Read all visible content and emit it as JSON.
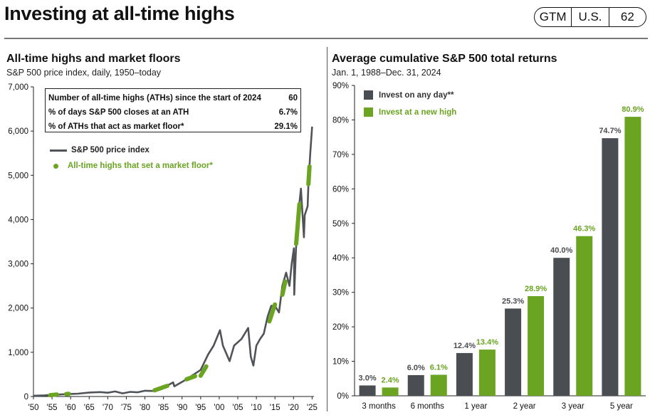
{
  "header": {
    "title": "Investing at all-time highs",
    "badge": [
      "GTM",
      "U.S.",
      "62"
    ]
  },
  "left_panel": {
    "title": "All-time highs and market floors",
    "subtitle": "S&P 500 price index, daily, 1950–today",
    "stats": [
      {
        "label": "Number of all-time highs (ATHs) since the start of 2024",
        "value": "60"
      },
      {
        "label": "% of days S&P 500 closes at an ATH",
        "value": "6.7%"
      },
      {
        "label": "% of ATHs that act as market floor*",
        "value": "29.1%"
      }
    ],
    "legend": {
      "line": "S&P 500 price index",
      "dots": "All-time highs that set a market floor*"
    }
  },
  "right_panel": {
    "title": "Average cumulative S&P 500 total returns",
    "subtitle": "Jan. 1, 1988–Dec. 31, 2024"
  },
  "colors": {
    "gray_series": "#4a4d52",
    "green_series": "#6aa421",
    "price_line": "#505357"
  },
  "chart_data": [
    {
      "type": "line",
      "title": "All-time highs and market floors",
      "subtitle": "S&P 500 price index, daily, 1950–today",
      "xlabel": "",
      "ylabel": "",
      "xlim": [
        1950,
        2025.5
      ],
      "ylim": [
        0,
        7000
      ],
      "x_ticks": [
        1950,
        1955,
        1960,
        1965,
        1970,
        1975,
        1980,
        1985,
        1990,
        1995,
        2000,
        2005,
        2010,
        2015,
        2020,
        2025
      ],
      "x_tick_labels": [
        "'50",
        "'55",
        "'60",
        "'65",
        "'70",
        "'75",
        "'80",
        "'85",
        "'90",
        "'95",
        "'00",
        "'05",
        "'10",
        "'15",
        "'20",
        "'25"
      ],
      "y_ticks": [
        0,
        1000,
        2000,
        3000,
        4000,
        5000,
        6000,
        7000
      ],
      "y_tick_labels": [
        "0",
        "1,000",
        "2,000",
        "3,000",
        "4,000",
        "5,000",
        "6,000",
        "7,000"
      ],
      "series": [
        {
          "name": "S&P 500 price index",
          "x": [
            1950,
            1953,
            1955,
            1957,
            1960,
            1962,
            1965,
            1968,
            1970,
            1972,
            1974,
            1976,
            1978,
            1980,
            1982,
            1985,
            1987.6,
            1987.9,
            1990,
            1991,
            1995,
            1997,
            1998.5,
            2000.2,
            2001,
            2002.8,
            2004,
            2006,
            2007.8,
            2008.5,
            2009.2,
            2010,
            2011,
            2012,
            2013,
            2014,
            2015,
            2016.1,
            2017,
            2018,
            2018.9,
            2019.5,
            2020.1,
            2020.2,
            2020.6,
            2021,
            2022,
            2022.8,
            2023,
            2023.8,
            2024,
            2024.5,
            2025
          ],
          "values": [
            17,
            25,
            40,
            45,
            58,
            65,
            90,
            100,
            85,
            115,
            70,
            105,
            95,
            130,
            125,
            200,
            320,
            230,
            330,
            380,
            600,
            950,
            1150,
            1500,
            1150,
            800,
            1150,
            1300,
            1550,
            900,
            700,
            1150,
            1300,
            1420,
            1800,
            2050,
            2050,
            1900,
            2500,
            2800,
            2500,
            3000,
            3350,
            2300,
            3200,
            3900,
            4700,
            3600,
            4100,
            4300,
            4800,
            5500,
            6100
          ]
        },
        {
          "name": "All-time highs that set a market floor*",
          "segments": [
            {
              "x": [
                1954.5,
                1956.3
              ],
              "values": [
                30,
                45
              ]
            },
            {
              "x": [
                1958.8,
                1959.5
              ],
              "values": [
                55,
                60
              ]
            },
            {
              "x": [
                1982.6,
                1986
              ],
              "values": [
                140,
                240
              ]
            },
            {
              "x": [
                1991.2,
                1993.5
              ],
              "values": [
                390,
                460
              ]
            },
            {
              "x": [
                1995,
                1996.5
              ],
              "values": [
                470,
                680
              ]
            },
            {
              "x": [
                2013.5,
                2015
              ],
              "values": [
                1700,
                2080
              ]
            },
            {
              "x": [
                2017,
                2017.8
              ],
              "values": [
                2300,
                2600
              ]
            },
            {
              "x": [
                2020.7,
                2021.6
              ],
              "values": [
                3450,
                4350
              ]
            },
            {
              "x": [
                2024,
                2024.3
              ],
              "values": [
                4800,
                5200
              ]
            }
          ]
        }
      ]
    },
    {
      "type": "bar",
      "title": "Average cumulative S&P 500 total returns",
      "subtitle": "Jan. 1, 1988–Dec. 31, 2024",
      "xlabel": "",
      "ylabel": "",
      "categories": [
        "3 months",
        "6 months",
        "1 year",
        "2 year",
        "3 year",
        "5 year"
      ],
      "ylim": [
        0,
        90
      ],
      "y_ticks": [
        0,
        10,
        20,
        30,
        40,
        50,
        60,
        70,
        80,
        90
      ],
      "y_tick_labels": [
        "0%",
        "10%",
        "20%",
        "30%",
        "40%",
        "50%",
        "60%",
        "70%",
        "80%",
        "90%"
      ],
      "series": [
        {
          "name": "Invest on any day**",
          "values": [
            3.0,
            6.0,
            12.4,
            25.3,
            40.0,
            74.7
          ],
          "labels": [
            "3.0%",
            "6.0%",
            "12.4%",
            "25.3%",
            "40.0%",
            "74.7%"
          ]
        },
        {
          "name": "Invest at a new high",
          "values": [
            2.4,
            6.1,
            13.4,
            28.9,
            46.3,
            80.9
          ],
          "labels": [
            "2.4%",
            "6.1%",
            "13.4%",
            "28.9%",
            "46.3%",
            "80.9%"
          ]
        }
      ],
      "legend_position": "top-left"
    }
  ]
}
